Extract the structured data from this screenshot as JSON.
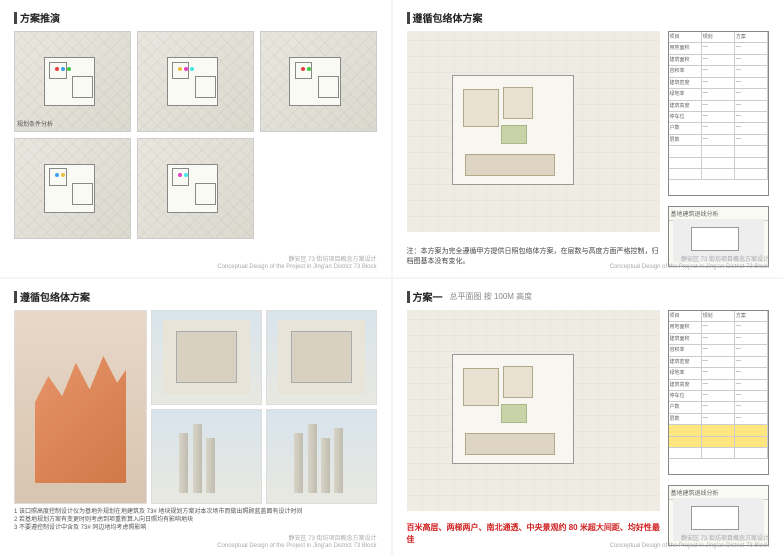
{
  "panels": {
    "p1": {
      "title": "方案推演",
      "captions": [
        "",
        "",
        "",
        "",
        "",
        ""
      ]
    },
    "p2": {
      "title": "遵循包络体方案",
      "note": "注：本方案为完全遵循甲方提供日照包络体方案，在层数与高度方面严格控制，归档图基本没有变化。",
      "inset_title": "基地建筑退线分析"
    },
    "p3": {
      "title": "遵循包络体方案",
      "list": "1 该口照高度控制设计仪为基地外规划在地建筑及 73# 地块规划方案对本次场市而做出照顾蓝盖面有设计时间\n2 若基地规划方案有变更时则考虑到项重新算入向日照均有影响地块\n3 不要遵控制设计中含及 73# 同边地均考虑照影响"
    },
    "p4": {
      "title": "方案一",
      "subtitle": "总平面图 按 100M 高度",
      "highlight": "百米高层、两梯两户、南北通透、中央景观约 80 米超大间距、均好性最佳",
      "inset_title": "基地建筑退线分析"
    }
  },
  "footer": {
    "line1": "静安区 73 街坊项目概念方案设计",
    "line2": "Conceptual Design of the Project in Jing'an District 73 Block"
  },
  "compass": "⊕",
  "table": {
    "rows": [
      [
        "项目",
        "规划",
        "方案"
      ],
      [
        "用地面积",
        "—",
        "—"
      ],
      [
        "建筑面积",
        "—",
        "—"
      ],
      [
        "容积率",
        "—",
        "—"
      ],
      [
        "建筑密度",
        "—",
        "—"
      ],
      [
        "绿地率",
        "—",
        "—"
      ],
      [
        "建筑高度",
        "—",
        "—"
      ],
      [
        "停车位",
        "—",
        "—"
      ],
      [
        "户数",
        "—",
        "—"
      ],
      [
        "层数",
        "—",
        "—"
      ],
      [
        "",
        "",
        ""
      ],
      [
        "",
        "",
        ""
      ],
      [
        "",
        "",
        ""
      ]
    ],
    "hl_rows": [
      10,
      11
    ]
  },
  "colors": {
    "dot_colors": [
      "#e84040",
      "#40a0e8",
      "#40c840",
      "#e8c040",
      "#e840c8",
      "#40e8e8"
    ]
  }
}
